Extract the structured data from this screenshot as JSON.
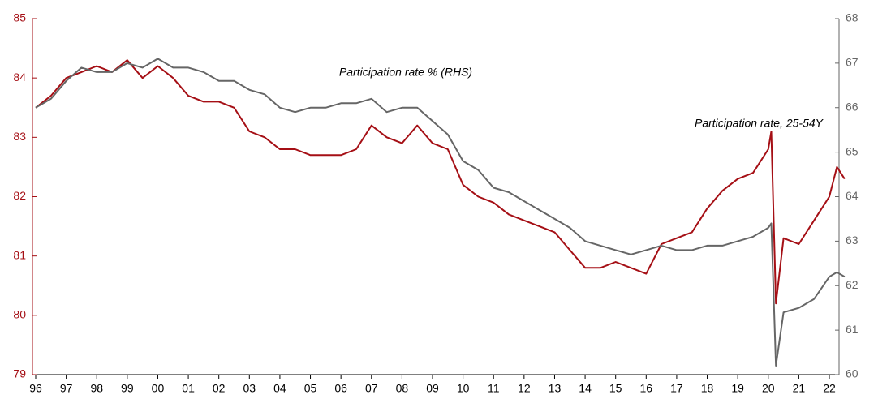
{
  "chart_data": {
    "type": "line",
    "x": [
      1996,
      1996.5,
      1997,
      1997.5,
      1998,
      1998.5,
      1999,
      1999.5,
      2000,
      2000.5,
      2001,
      2001.5,
      2002,
      2002.5,
      2003,
      2003.5,
      2004,
      2004.5,
      2005,
      2005.5,
      2006,
      2006.5,
      2007,
      2007.5,
      2008,
      2008.5,
      2009,
      2009.5,
      2010,
      2010.5,
      2011,
      2011.5,
      2012,
      2012.5,
      2013,
      2013.5,
      2014,
      2014.5,
      2015,
      2015.5,
      2016,
      2016.5,
      2017,
      2017.5,
      2018,
      2018.5,
      2019,
      2019.5,
      2020,
      2020.1,
      2020.25,
      2020.5,
      2021,
      2021.5,
      2022,
      2022.25,
      2022.5
    ],
    "series": [
      {
        "name": "Participation rate, 25-54Y",
        "color": "#a50f15",
        "axis": "y",
        "values": [
          83.5,
          83.7,
          84.0,
          84.1,
          84.2,
          84.1,
          84.3,
          84.0,
          84.2,
          84.0,
          83.7,
          83.6,
          83.6,
          83.5,
          83.1,
          83.0,
          82.8,
          82.8,
          82.7,
          82.7,
          82.7,
          82.8,
          83.2,
          83.0,
          82.9,
          83.2,
          82.9,
          82.8,
          82.2,
          82.0,
          81.9,
          81.7,
          81.6,
          81.5,
          81.4,
          81.1,
          80.8,
          80.8,
          80.9,
          80.8,
          80.7,
          81.2,
          81.3,
          81.4,
          81.8,
          82.1,
          82.3,
          82.4,
          82.8,
          83.1,
          80.2,
          81.3,
          81.2,
          81.6,
          82.0,
          82.5,
          82.3
        ]
      },
      {
        "name": "Participation rate % (RHS)",
        "color": "#666666",
        "axis": "y2",
        "values": [
          66.0,
          66.2,
          66.6,
          66.9,
          66.8,
          66.8,
          67.0,
          66.9,
          67.1,
          66.9,
          66.9,
          66.8,
          66.6,
          66.6,
          66.4,
          66.3,
          66.0,
          65.9,
          66.0,
          66.0,
          66.1,
          66.1,
          66.2,
          65.9,
          66.0,
          66.0,
          65.7,
          65.4,
          64.8,
          64.6,
          64.2,
          64.1,
          63.9,
          63.7,
          63.5,
          63.3,
          63.0,
          62.9,
          62.8,
          62.7,
          62.8,
          62.9,
          62.8,
          62.8,
          62.9,
          62.9,
          63.0,
          63.1,
          63.3,
          63.4,
          60.2,
          61.4,
          61.5,
          61.7,
          62.2,
          62.3,
          62.2
        ]
      }
    ],
    "xlim": [
      1996,
      2022.8
    ],
    "xticks": [
      {
        "value": 1996,
        "label": "96"
      },
      {
        "value": 1997,
        "label": "97"
      },
      {
        "value": 1998,
        "label": "98"
      },
      {
        "value": 1999,
        "label": "99"
      },
      {
        "value": 2000,
        "label": "00"
      },
      {
        "value": 2001,
        "label": "01"
      },
      {
        "value": 2002,
        "label": "02"
      },
      {
        "value": 2003,
        "label": "03"
      },
      {
        "value": 2004,
        "label": "04"
      },
      {
        "value": 2005,
        "label": "05"
      },
      {
        "value": 2006,
        "label": "06"
      },
      {
        "value": 2007,
        "label": "07"
      },
      {
        "value": 2008,
        "label": "08"
      },
      {
        "value": 2009,
        "label": "09"
      },
      {
        "value": 2010,
        "label": "10"
      },
      {
        "value": 2011,
        "label": "11"
      },
      {
        "value": 2012,
        "label": "12"
      },
      {
        "value": 2013,
        "label": "13"
      },
      {
        "value": 2014,
        "label": "14"
      },
      {
        "value": 2015,
        "label": "15"
      },
      {
        "value": 2016,
        "label": "16"
      },
      {
        "value": 2017,
        "label": "17"
      },
      {
        "value": 2018,
        "label": "18"
      },
      {
        "value": 2019,
        "label": "19"
      },
      {
        "value": 2020,
        "label": "20"
      },
      {
        "value": 2021,
        "label": "21"
      },
      {
        "value": 2022,
        "label": "22"
      }
    ],
    "ylim": [
      79,
      85
    ],
    "yticks": [
      79,
      80,
      81,
      82,
      83,
      84,
      85
    ],
    "ycolor": "#a50f15",
    "y2lim": [
      60,
      68
    ],
    "y2ticks": [
      60,
      61,
      62,
      63,
      64,
      65,
      66,
      67,
      68
    ],
    "y2color": "#666666"
  }
}
